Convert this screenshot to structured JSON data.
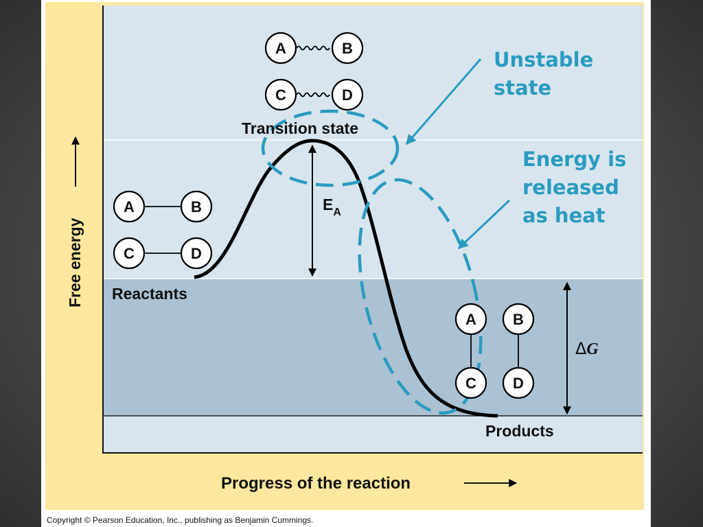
{
  "diagram": {
    "axis_y_label": "Free energy",
    "axis_x_label": "Progress of the reaction",
    "transition_state_label": "Transition state",
    "reactants_label": "Reactants",
    "products_label": "Products",
    "ea_label": "E",
    "ea_subscript": "A",
    "delta_g_symbol": "Δ",
    "delta_g_letter": "G",
    "molecules": {
      "a": "A",
      "b": "B",
      "c": "C",
      "d": "D"
    }
  },
  "callouts": {
    "unstable_line1": "Unstable",
    "unstable_line2": "state",
    "energy_line1": "Energy is",
    "energy_line2": "released",
    "energy_line3": "as heat"
  },
  "credit": "Copyright © Pearson Education, Inc., publishing as Benjamin Cummings.",
  "colors": {
    "outer_frame": "#fbe79e",
    "panel_upper": "#d8e5ef",
    "panel_lower": "#abc2d4",
    "callout": "#2a9bbf",
    "curve": "#000000"
  }
}
